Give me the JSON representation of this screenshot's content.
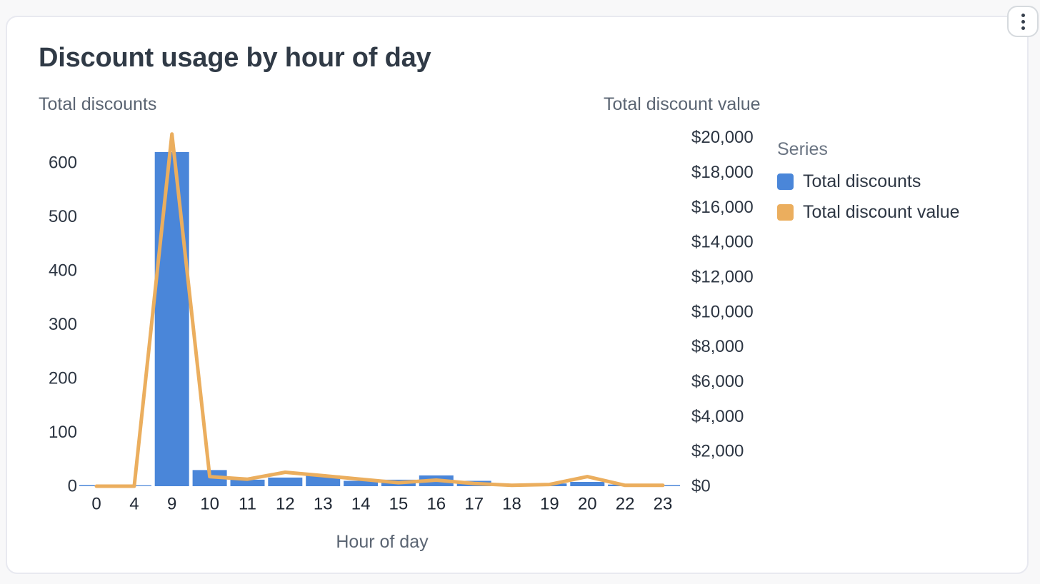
{
  "page": {
    "background": "#f8f8f9"
  },
  "card": {
    "title": "Discount usage by hour of day",
    "menu": {
      "icon": "vertical-ellipsis-icon"
    }
  },
  "chart_data": {
    "type": "bar",
    "subtype": "dual-axis bar + line combo",
    "title": "Discount usage by hour of day",
    "xlabel": "Hour of day",
    "grid": "off",
    "categories": [
      "0",
      "4",
      "9",
      "10",
      "11",
      "12",
      "13",
      "14",
      "15",
      "16",
      "17",
      "18",
      "19",
      "20",
      "22",
      "23"
    ],
    "series": [
      {
        "name": "Total discounts",
        "chart": "bar",
        "axis": "left",
        "color": "#4a86d9",
        "values": [
          2,
          1,
          620,
          30,
          12,
          16,
          20,
          10,
          12,
          20,
          10,
          3,
          5,
          8,
          3,
          2
        ]
      },
      {
        "name": "Total discount value",
        "chart": "line",
        "axis": "right",
        "color": "#ebae5e",
        "values": [
          0,
          0,
          20200,
          550,
          400,
          800,
          600,
          400,
          200,
          350,
          150,
          50,
          100,
          550,
          50,
          50
        ]
      }
    ],
    "left_axis": {
      "title": "Total discounts",
      "range": [
        0,
        660
      ],
      "ticks": [
        {
          "v": 0,
          "label": "0"
        },
        {
          "v": 100,
          "label": "100"
        },
        {
          "v": 200,
          "label": "200"
        },
        {
          "v": 300,
          "label": "300"
        },
        {
          "v": 400,
          "label": "400"
        },
        {
          "v": 500,
          "label": "500"
        },
        {
          "v": 600,
          "label": "600"
        }
      ]
    },
    "right_axis": {
      "title": "Total discount value",
      "range": [
        0,
        20500
      ],
      "ticks": [
        {
          "v": 0,
          "label": "$0"
        },
        {
          "v": 2000,
          "label": "$2,000"
        },
        {
          "v": 4000,
          "label": "$4,000"
        },
        {
          "v": 6000,
          "label": "$6,000"
        },
        {
          "v": 8000,
          "label": "$8,000"
        },
        {
          "v": 10000,
          "label": "$10,000"
        },
        {
          "v": 12000,
          "label": "$12,000"
        },
        {
          "v": 14000,
          "label": "$14,000"
        },
        {
          "v": 16000,
          "label": "$16,000"
        },
        {
          "v": 18000,
          "label": "$18,000"
        },
        {
          "v": 20000,
          "label": "$20,000"
        }
      ]
    },
    "legend": {
      "title": "Series",
      "position": "right",
      "entries": [
        {
          "label": "Total discounts",
          "color": "#4a86d9"
        },
        {
          "label": "Total discount value",
          "color": "#ebae5e"
        }
      ]
    }
  }
}
